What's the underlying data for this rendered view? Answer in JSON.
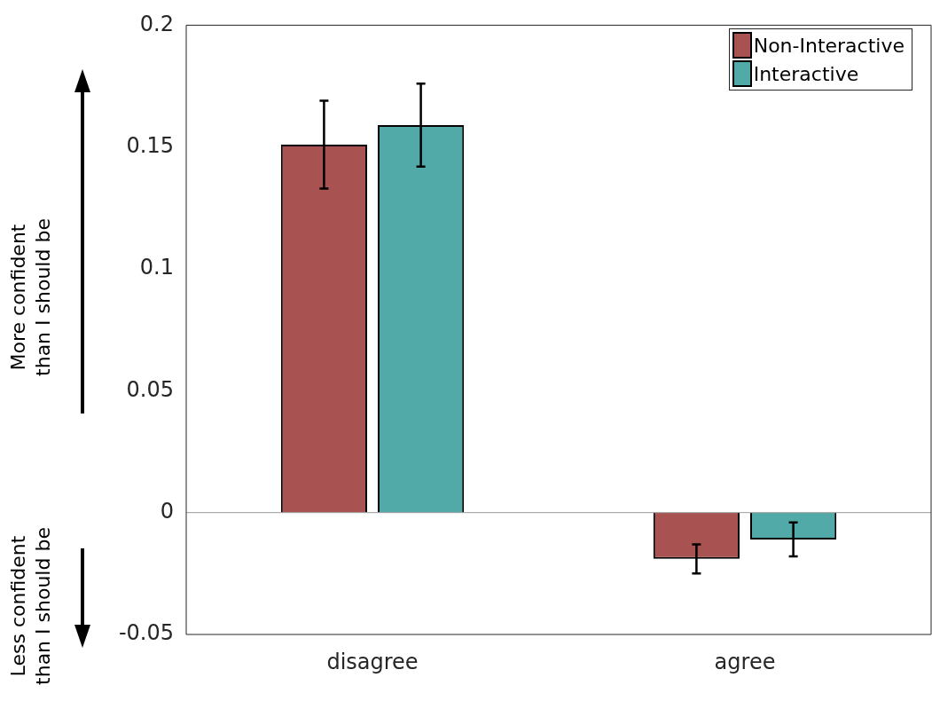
{
  "chart_data": {
    "type": "bar",
    "categories": [
      "disagree",
      "agree"
    ],
    "series": [
      {
        "name": "Non-Interactive",
        "color": "#a85252",
        "values": [
          0.151,
          -0.019
        ],
        "errors": [
          0.018,
          0.006
        ]
      },
      {
        "name": "Interactive",
        "color": "#52aaa8",
        "values": [
          0.159,
          -0.011
        ],
        "errors": [
          0.017,
          0.007
        ]
      }
    ],
    "ylim": [
      -0.05,
      0.2
    ],
    "yticks": [
      -0.05,
      0,
      0.05,
      0.1,
      0.15,
      0.2
    ],
    "ref_lines": [
      {
        "axis": "y",
        "value": 0,
        "color": "#9a9a9a"
      }
    ],
    "legend": "top right",
    "annotations": [
      "More confident\nthan I should be",
      "Less confident\nthan I should be"
    ]
  }
}
